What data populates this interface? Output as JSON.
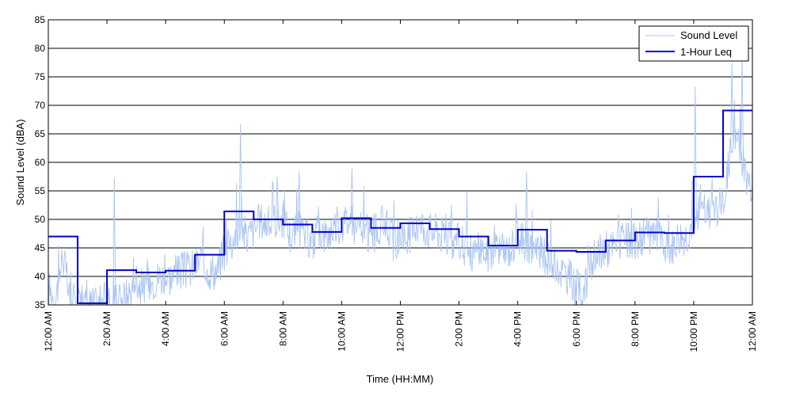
{
  "chart_data": {
    "type": "line",
    "title": "",
    "xlabel": "Time (HH:MM)",
    "ylabel": "Sound Level (dBA)",
    "ylim": [
      35,
      85
    ],
    "yticks": [
      35,
      40,
      45,
      50,
      55,
      60,
      65,
      70,
      75,
      80,
      85
    ],
    "xlim": [
      0,
      24
    ],
    "xtick_hours": [
      0,
      2,
      4,
      6,
      8,
      10,
      12,
      14,
      16,
      18,
      20,
      22,
      24
    ],
    "xtick_labels": [
      "12:00 AM",
      "2:00 AM",
      "4:00 AM",
      "6:00 AM",
      "8:00 AM",
      "10:00 AM",
      "12:00 PM",
      "2:00 PM",
      "4:00 PM",
      "6:00 PM",
      "8:00 PM",
      "10:00 PM",
      "12:00 AM"
    ],
    "grid": "horizontal",
    "legend_position": "top-right",
    "legend": [
      "Sound Level",
      "1-Hour Leq"
    ],
    "colors": {
      "sound_level": "#a9c4f5",
      "leq": "#0000cc",
      "grid": "#000000",
      "axes": "#000000"
    },
    "series": [
      {
        "name": "Sound Level",
        "style": "thin light-blue fluctuating line",
        "x_hours": [
          0,
          0.25,
          0.5,
          0.75,
          1,
          1.25,
          1.5,
          1.75,
          2,
          2.25,
          2.5,
          2.75,
          3,
          3.25,
          3.5,
          3.75,
          4,
          4.25,
          4.5,
          4.75,
          5,
          5.25,
          5.5,
          5.75,
          6,
          6.25,
          6.5,
          6.75,
          7,
          7.25,
          7.5,
          7.75,
          8,
          8.25,
          8.5,
          8.75,
          9,
          9.25,
          9.5,
          9.75,
          10,
          10.25,
          10.5,
          10.75,
          11,
          11.25,
          11.5,
          11.75,
          12,
          12.25,
          12.5,
          12.75,
          13,
          13.25,
          13.5,
          13.75,
          14,
          14.25,
          14.5,
          14.75,
          15,
          15.25,
          15.5,
          15.75,
          16,
          16.25,
          16.5,
          16.75,
          17,
          17.25,
          17.5,
          17.75,
          18,
          18.25,
          18.5,
          18.75,
          19,
          19.25,
          19.5,
          19.75,
          20,
          20.25,
          20.5,
          20.75,
          21,
          21.25,
          21.5,
          21.75,
          22,
          22.25,
          22.5,
          22.75,
          23,
          23.25,
          23.5,
          23.75,
          24
        ],
        "values": [
          38,
          36,
          44,
          35,
          36,
          35,
          35,
          35,
          36,
          35,
          36,
          37,
          39,
          38,
          39,
          40,
          40,
          40,
          41,
          41,
          42,
          43,
          41,
          41,
          44,
          46,
          49,
          47,
          48,
          50,
          49,
          50,
          50,
          47,
          48,
          47,
          46,
          48,
          47,
          49,
          49,
          50,
          48,
          48,
          47,
          48,
          50,
          46,
          47,
          47,
          48,
          49,
          48,
          48,
          47,
          46,
          46,
          45,
          44,
          45,
          44,
          46,
          44,
          45,
          47,
          46,
          45,
          44,
          43,
          42,
          41,
          40,
          38,
          37,
          42,
          44,
          45,
          45,
          46,
          46,
          46,
          47,
          47,
          47,
          45,
          45,
          47,
          47,
          50,
          52,
          51,
          52,
          53,
          62,
          64,
          58,
          56
        ]
      },
      {
        "name": "1-Hour Leq",
        "style": "step",
        "x_hours": [
          0,
          1,
          2,
          3,
          4,
          5,
          6,
          7,
          8,
          9,
          10,
          11,
          12,
          13,
          14,
          15,
          16,
          17,
          18,
          19,
          20,
          21,
          22,
          23
        ],
        "values": [
          47,
          35.3,
          41.1,
          40.7,
          41,
          43.8,
          51.4,
          50,
          49.1,
          47.8,
          50.2,
          48.5,
          49.3,
          48.3,
          47,
          45.4,
          48.2,
          44.5,
          44.3,
          46.3,
          47.7,
          47.6,
          57.5,
          69.1
        ]
      }
    ],
    "spikes": [
      {
        "x_hours": 2.25,
        "value": 57.3
      },
      {
        "x_hours": 6.55,
        "value": 66.7
      },
      {
        "x_hours": 7.8,
        "value": 57.5
      },
      {
        "x_hours": 8.55,
        "value": 58.6
      },
      {
        "x_hours": 10.35,
        "value": 58.9
      },
      {
        "x_hours": 16.3,
        "value": 58.4
      },
      {
        "x_hours": 22.05,
        "value": 73.3
      },
      {
        "x_hours": 23.3,
        "value": 77.5
      },
      {
        "x_hours": 23.65,
        "value": 79
      }
    ]
  }
}
